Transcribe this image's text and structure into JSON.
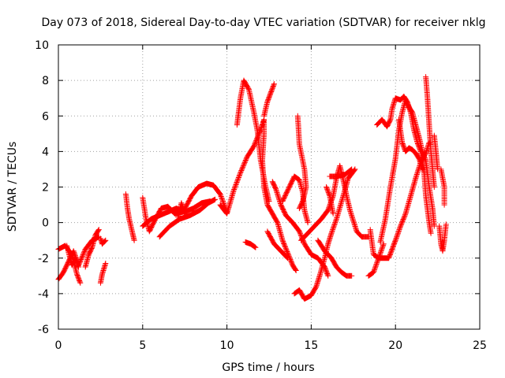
{
  "chart_data": {
    "type": "scatter",
    "title": "Day 073 of 2018, Sidereal Day-to-day VTEC variation (SDTVAR) for receiver nklg",
    "xlabel": "GPS time / hours",
    "ylabel": "SDTVAR / TECUs",
    "xlim": [
      0,
      25
    ],
    "ylim": [
      -6,
      10
    ],
    "xticks": [
      0,
      5,
      10,
      15,
      20,
      25
    ],
    "yticks": [
      -6,
      -4,
      -2,
      0,
      2,
      4,
      6,
      8,
      10
    ],
    "grid": true,
    "marker": "+",
    "color": "#ff0000",
    "series": [
      {
        "name": "tracks",
        "tracks": [
          [
            [
              0.0,
              -3.2
            ],
            [
              0.3,
              -2.8
            ],
            [
              0.6,
              -2.2
            ],
            [
              0.9,
              -1.6
            ],
            [
              1.2,
              -2.4
            ],
            [
              1.6,
              -1.5
            ],
            [
              2.0,
              -1.0
            ],
            [
              2.4,
              -0.8
            ]
          ],
          [
            [
              0.0,
              -1.5
            ],
            [
              0.4,
              -1.3
            ],
            [
              0.8,
              -1.8
            ],
            [
              1.1,
              -2.9
            ],
            [
              1.3,
              -3.4
            ]
          ],
          [
            [
              0.5,
              -1.3
            ],
            [
              0.8,
              -2.4
            ],
            [
              1.0,
              -2.0
            ],
            [
              1.2,
              -2.5
            ]
          ],
          [
            [
              1.6,
              -2.5
            ],
            [
              1.8,
              -1.8
            ],
            [
              2.0,
              -1.4
            ],
            [
              2.2,
              -0.7
            ],
            [
              2.4,
              -0.4
            ]
          ],
          [
            [
              2.5,
              -3.4
            ],
            [
              2.6,
              -2.9
            ],
            [
              2.8,
              -2.3
            ]
          ],
          [
            [
              2.5,
              -0.9
            ],
            [
              2.6,
              -1.2
            ],
            [
              2.8,
              -1.0
            ]
          ],
          [
            [
              4.0,
              1.6
            ],
            [
              4.1,
              0.8
            ],
            [
              4.2,
              0.2
            ],
            [
              4.4,
              -0.6
            ],
            [
              4.5,
              -1.0
            ]
          ],
          [
            [
              5.0,
              1.4
            ],
            [
              5.2,
              0.2
            ],
            [
              5.4,
              -0.5
            ],
            [
              5.7,
              0.1
            ],
            [
              6.1,
              0.8
            ],
            [
              6.5,
              0.9
            ],
            [
              6.9,
              0.5
            ],
            [
              7.4,
              0.6
            ],
            [
              7.9,
              1.5
            ],
            [
              8.3,
              2.0
            ],
            [
              8.8,
              2.2
            ],
            [
              9.2,
              2.1
            ],
            [
              9.6,
              1.6
            ],
            [
              10.0,
              0.6
            ]
          ],
          [
            [
              5.0,
              -0.2
            ],
            [
              5.5,
              0.2
            ],
            [
              6.0,
              0.4
            ],
            [
              6.5,
              0.6
            ],
            [
              7.0,
              0.8
            ],
            [
              7.5,
              0.6
            ],
            [
              8.0,
              0.8
            ],
            [
              8.5,
              1.1
            ],
            [
              9.0,
              1.2
            ]
          ],
          [
            [
              6.0,
              -0.8
            ],
            [
              6.6,
              -0.2
            ],
            [
              7.2,
              0.2
            ],
            [
              7.8,
              0.4
            ],
            [
              8.4,
              0.7
            ],
            [
              8.9,
              1.1
            ],
            [
              9.3,
              1.3
            ]
          ],
          [
            [
              7.1,
              0.3
            ],
            [
              7.3,
              1.1
            ],
            [
              7.5,
              0.5
            ]
          ],
          [
            [
              9.6,
              1.0
            ],
            [
              10.0,
              0.5
            ],
            [
              10.4,
              1.8
            ],
            [
              10.8,
              2.8
            ],
            [
              11.2,
              3.7
            ],
            [
              11.6,
              4.3
            ],
            [
              11.9,
              5.0
            ],
            [
              12.1,
              5.5
            ],
            [
              12.2,
              5.8
            ],
            [
              12.2,
              5.0
            ],
            [
              12.1,
              3.5
            ],
            [
              12.2,
              2.0
            ],
            [
              12.4,
              1.0
            ],
            [
              12.7,
              0.5
            ],
            [
              13.0,
              0.0
            ],
            [
              13.3,
              -1.0
            ],
            [
              13.6,
              -1.7
            ],
            [
              13.9,
              -2.4
            ],
            [
              14.1,
              -2.7
            ]
          ],
          [
            [
              10.6,
              5.5
            ],
            [
              10.8,
              7.0
            ],
            [
              11.0,
              8.0
            ],
            [
              11.3,
              7.5
            ],
            [
              11.6,
              6.2
            ],
            [
              11.8,
              5.2
            ],
            [
              12.0,
              3.5
            ],
            [
              12.3,
              2.0
            ],
            [
              12.5,
              1.2
            ]
          ],
          [
            [
              12.2,
              6.0
            ],
            [
              12.4,
              6.8
            ],
            [
              12.6,
              7.3
            ],
            [
              12.8,
              7.8
            ]
          ],
          [
            [
              11.1,
              -1.1
            ],
            [
              11.4,
              -1.2
            ],
            [
              11.7,
              -1.4
            ]
          ],
          [
            [
              12.4,
              -0.5
            ],
            [
              12.8,
              -1.2
            ],
            [
              13.2,
              -1.6
            ],
            [
              13.6,
              -2.0
            ]
          ],
          [
            [
              12.7,
              2.3
            ],
            [
              12.9,
              1.9
            ],
            [
              13.2,
              1.0
            ],
            [
              13.5,
              0.4
            ],
            [
              13.9,
              0.0
            ],
            [
              14.3,
              -0.5
            ],
            [
              14.6,
              -1.2
            ],
            [
              15.0,
              -1.8
            ],
            [
              15.4,
              -2.0
            ],
            [
              15.8,
              -2.5
            ],
            [
              16.0,
              -3.0
            ]
          ],
          [
            [
              13.3,
              1.2
            ],
            [
              13.7,
              2.0
            ],
            [
              14.0,
              2.6
            ],
            [
              14.3,
              2.4
            ],
            [
              14.5,
              1.7
            ],
            [
              14.6,
              0.7
            ],
            [
              14.8,
              0.0
            ]
          ],
          [
            [
              14.2,
              6.0
            ],
            [
              14.3,
              4.4
            ],
            [
              14.6,
              3.0
            ],
            [
              14.7,
              2.0
            ],
            [
              14.5,
              1.2
            ],
            [
              14.3,
              0.8
            ]
          ],
          [
            [
              14.0,
              -4.0
            ],
            [
              14.3,
              -3.8
            ],
            [
              14.6,
              -4.3
            ],
            [
              15.0,
              -4.1
            ],
            [
              15.3,
              -3.6
            ],
            [
              15.5,
              -3.0
            ],
            [
              15.8,
              -2.0
            ],
            [
              16.0,
              -1.2
            ],
            [
              16.2,
              -0.6
            ],
            [
              16.5,
              0.2
            ],
            [
              16.9,
              1.5
            ],
            [
              17.2,
              2.5
            ],
            [
              17.6,
              3.0
            ]
          ],
          [
            [
              14.4,
              -1.0
            ],
            [
              14.8,
              -0.6
            ],
            [
              15.2,
              -0.2
            ],
            [
              15.6,
              0.2
            ],
            [
              16.0,
              0.7
            ],
            [
              16.3,
              1.5
            ],
            [
              16.5,
              2.5
            ],
            [
              16.7,
              3.2
            ],
            [
              16.9,
              2.4
            ],
            [
              17.1,
              1.5
            ],
            [
              17.3,
              0.7
            ],
            [
              17.7,
              -0.5
            ],
            [
              18.0,
              -0.8
            ],
            [
              18.4,
              -0.8
            ]
          ],
          [
            [
              15.4,
              -1.0
            ],
            [
              15.8,
              -1.6
            ],
            [
              16.2,
              -2.0
            ],
            [
              16.5,
              -2.5
            ],
            [
              16.8,
              -2.8
            ],
            [
              17.1,
              -3.0
            ],
            [
              17.4,
              -3.0
            ]
          ],
          [
            [
              15.9,
              2.0
            ],
            [
              16.1,
              1.5
            ],
            [
              16.3,
              0.5
            ]
          ],
          [
            [
              16.1,
              2.6
            ],
            [
              16.5,
              2.6
            ],
            [
              17.0,
              2.7
            ],
            [
              17.4,
              3.0
            ]
          ],
          [
            [
              18.4,
              -3.0
            ],
            [
              18.7,
              -2.8
            ],
            [
              19.0,
              -2.0
            ],
            [
              19.3,
              -1.2
            ]
          ],
          [
            [
              18.5,
              -0.4
            ],
            [
              18.7,
              -1.8
            ],
            [
              19.0,
              -2.0
            ],
            [
              19.3,
              -2.0
            ],
            [
              19.6,
              -2.0
            ],
            [
              19.8,
              -1.5
            ],
            [
              20.0,
              -1.0
            ],
            [
              20.3,
              -0.2
            ],
            [
              20.6,
              0.5
            ],
            [
              20.9,
              1.5
            ],
            [
              21.2,
              2.5
            ],
            [
              21.5,
              3.4
            ],
            [
              21.8,
              3.9
            ],
            [
              22.0,
              4.5
            ]
          ],
          [
            [
              18.9,
              5.5
            ],
            [
              19.2,
              5.8
            ],
            [
              19.5,
              5.4
            ],
            [
              19.7,
              5.8
            ],
            [
              19.8,
              6.4
            ],
            [
              20.0,
              7.0
            ],
            [
              20.3,
              6.9
            ],
            [
              20.5,
              7.1
            ],
            [
              20.7,
              6.8
            ],
            [
              20.9,
              6.2
            ],
            [
              21.1,
              5.2
            ],
            [
              21.3,
              4.5
            ],
            [
              21.5,
              4.0
            ],
            [
              21.7,
              2.8
            ],
            [
              21.8,
              1.5
            ],
            [
              22.0,
              0.0
            ],
            [
              22.1,
              -0.6
            ]
          ],
          [
            [
              19.1,
              -1.1
            ],
            [
              19.4,
              0.2
            ],
            [
              19.7,
              2.0
            ],
            [
              20.0,
              3.6
            ],
            [
              20.2,
              5.2
            ],
            [
              20.4,
              6.2
            ],
            [
              20.6,
              6.9
            ],
            [
              20.8,
              6.5
            ],
            [
              21.0,
              6.2
            ],
            [
              21.2,
              5.5
            ],
            [
              21.4,
              4.8
            ],
            [
              21.6,
              4.0
            ],
            [
              21.8,
              3.5
            ],
            [
              22.0,
              2.0
            ],
            [
              22.2,
              0.8
            ],
            [
              22.3,
              -0.2
            ]
          ],
          [
            [
              20.2,
              5.8
            ],
            [
              20.4,
              4.5
            ],
            [
              20.6,
              4.0
            ],
            [
              20.8,
              4.2
            ],
            [
              21.0,
              4.1
            ],
            [
              21.2,
              3.9
            ],
            [
              21.4,
              3.6
            ],
            [
              21.6,
              3.0
            ]
          ],
          [
            [
              21.8,
              8.2
            ],
            [
              21.9,
              7.0
            ],
            [
              22.0,
              5.5
            ],
            [
              22.1,
              4.0
            ],
            [
              22.2,
              3.0
            ],
            [
              22.3,
              2.0
            ]
          ],
          [
            [
              22.3,
              4.9
            ],
            [
              22.4,
              4.0
            ],
            [
              22.5,
              3.0
            ]
          ],
          [
            [
              22.7,
              3.0
            ],
            [
              22.9,
              2.0
            ],
            [
              22.9,
              1.0
            ]
          ],
          [
            [
              22.6,
              -0.2
            ],
            [
              22.7,
              -1.2
            ],
            [
              22.8,
              -1.6
            ],
            [
              22.9,
              -1.0
            ],
            [
              23.0,
              -0.1
            ]
          ]
        ]
      }
    ]
  }
}
